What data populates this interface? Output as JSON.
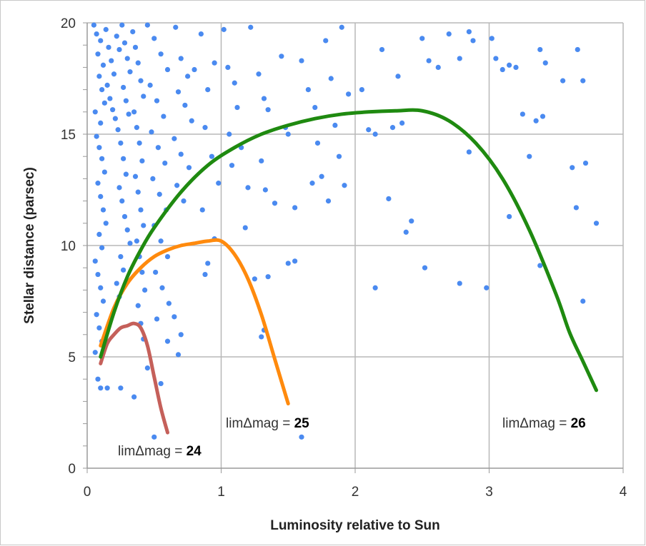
{
  "chart_data": {
    "type": "scatter",
    "title": "",
    "xlabel": "Luminosity relative to Sun",
    "ylabel": "Stellar distance (parsec)",
    "xlim": [
      0,
      4
    ],
    "ylim": [
      0,
      20
    ],
    "x_ticks": [
      "0",
      "1",
      "2",
      "3",
      "4"
    ],
    "y_ticks": [
      "0",
      "5",
      "10",
      "15",
      "20"
    ],
    "grid": true,
    "colors": {
      "points": "#4a8af0",
      "curve_24": "#c5605a",
      "curve_25": "#ff8a0d",
      "curve_26": "#1f8a10",
      "grid": "#b8b8b8"
    },
    "curves": [
      {
        "label_prefix": "limΔmag = ",
        "label_value": "24",
        "color": "#c5605a",
        "x": [
          0.1,
          0.15,
          0.2,
          0.25,
          0.3,
          0.35,
          0.4,
          0.45,
          0.5,
          0.55,
          0.6
        ],
        "y": [
          4.7,
          5.6,
          6.0,
          6.3,
          6.4,
          6.5,
          6.3,
          5.5,
          4.1,
          2.7,
          1.6
        ]
      },
      {
        "label_prefix": "limΔmag = ",
        "label_value": "25",
        "color": "#ff8a0d",
        "x": [
          0.1,
          0.2,
          0.3,
          0.4,
          0.5,
          0.6,
          0.7,
          0.8,
          0.9,
          1.0,
          1.1,
          1.2,
          1.3,
          1.4,
          1.5
        ],
        "y": [
          5.5,
          7.2,
          8.3,
          9.0,
          9.5,
          9.8,
          10.0,
          10.1,
          10.2,
          10.2,
          9.6,
          8.5,
          6.9,
          4.9,
          2.9
        ]
      },
      {
        "label_prefix": "limΔmag = ",
        "label_value": "26",
        "color": "#1f8a10",
        "x": [
          0.1,
          0.2,
          0.3,
          0.4,
          0.5,
          0.7,
          0.9,
          1.1,
          1.3,
          1.5,
          1.7,
          1.9,
          2.1,
          2.3,
          2.5,
          2.7,
          2.9,
          3.1,
          3.3,
          3.5,
          3.6,
          3.7,
          3.8
        ],
        "y": [
          5.0,
          7.0,
          8.6,
          9.8,
          10.8,
          12.4,
          13.6,
          14.4,
          15.0,
          15.4,
          15.7,
          15.9,
          16.0,
          16.05,
          16.05,
          15.6,
          14.6,
          13.0,
          10.7,
          7.8,
          6.1,
          4.8,
          3.5
        ]
      }
    ],
    "points": [
      [
        0.05,
        19.9
      ],
      [
        0.07,
        19.5
      ],
      [
        0.08,
        18.6
      ],
      [
        0.1,
        19.2
      ],
      [
        0.12,
        18.1
      ],
      [
        0.09,
        17.6
      ],
      [
        0.11,
        17.0
      ],
      [
        0.13,
        16.4
      ],
      [
        0.06,
        16.0
      ],
      [
        0.1,
        15.5
      ],
      [
        0.14,
        19.7
      ],
      [
        0.16,
        18.9
      ],
      [
        0.18,
        18.3
      ],
      [
        0.2,
        17.7
      ],
      [
        0.22,
        19.4
      ],
      [
        0.24,
        18.8
      ],
      [
        0.15,
        17.2
      ],
      [
        0.17,
        16.6
      ],
      [
        0.19,
        16.1
      ],
      [
        0.21,
        15.7
      ],
      [
        0.07,
        14.9
      ],
      [
        0.09,
        14.4
      ],
      [
        0.11,
        13.9
      ],
      [
        0.13,
        13.3
      ],
      [
        0.08,
        12.8
      ],
      [
        0.1,
        12.2
      ],
      [
        0.12,
        11.6
      ],
      [
        0.14,
        11.0
      ],
      [
        0.09,
        10.5
      ],
      [
        0.11,
        9.9
      ],
      [
        0.06,
        9.3
      ],
      [
        0.08,
        8.7
      ],
      [
        0.1,
        8.1
      ],
      [
        0.12,
        7.5
      ],
      [
        0.07,
        6.9
      ],
      [
        0.09,
        6.3
      ],
      [
        0.11,
        5.7
      ],
      [
        0.06,
        5.2
      ],
      [
        0.08,
        4.0
      ],
      [
        0.1,
        3.6
      ],
      [
        0.15,
        3.6
      ],
      [
        0.25,
        3.6
      ],
      [
        0.35,
        3.2
      ],
      [
        0.45,
        4.5
      ],
      [
        0.5,
        1.4
      ],
      [
        0.26,
        19.9
      ],
      [
        0.28,
        19.1
      ],
      [
        0.3,
        18.4
      ],
      [
        0.32,
        17.8
      ],
      [
        0.27,
        17.1
      ],
      [
        0.29,
        16.5
      ],
      [
        0.31,
        15.9
      ],
      [
        0.23,
        15.2
      ],
      [
        0.25,
        14.6
      ],
      [
        0.27,
        13.9
      ],
      [
        0.29,
        13.2
      ],
      [
        0.24,
        12.6
      ],
      [
        0.26,
        12.0
      ],
      [
        0.28,
        11.3
      ],
      [
        0.3,
        10.7
      ],
      [
        0.32,
        10.1
      ],
      [
        0.25,
        9.5
      ],
      [
        0.27,
        8.9
      ],
      [
        0.22,
        8.3
      ],
      [
        0.24,
        7.7
      ],
      [
        0.34,
        19.6
      ],
      [
        0.36,
        18.9
      ],
      [
        0.38,
        18.2
      ],
      [
        0.4,
        17.4
      ],
      [
        0.42,
        16.7
      ],
      [
        0.35,
        16.0
      ],
      [
        0.37,
        15.3
      ],
      [
        0.39,
        14.6
      ],
      [
        0.41,
        13.8
      ],
      [
        0.36,
        13.1
      ],
      [
        0.38,
        12.4
      ],
      [
        0.4,
        11.6
      ],
      [
        0.42,
        10.9
      ],
      [
        0.37,
        10.2
      ],
      [
        0.39,
        9.5
      ],
      [
        0.41,
        8.8
      ],
      [
        0.43,
        8.0
      ],
      [
        0.38,
        7.3
      ],
      [
        0.4,
        6.5
      ],
      [
        0.42,
        5.8
      ],
      [
        0.45,
        19.9
      ],
      [
        0.5,
        19.3
      ],
      [
        0.55,
        18.6
      ],
      [
        0.6,
        17.9
      ],
      [
        0.47,
        17.2
      ],
      [
        0.52,
        16.5
      ],
      [
        0.57,
        15.8
      ],
      [
        0.48,
        15.1
      ],
      [
        0.53,
        14.4
      ],
      [
        0.58,
        13.7
      ],
      [
        0.49,
        13.0
      ],
      [
        0.54,
        12.3
      ],
      [
        0.59,
        11.6
      ],
      [
        0.5,
        10.9
      ],
      [
        0.55,
        10.2
      ],
      [
        0.6,
        9.5
      ],
      [
        0.51,
        8.8
      ],
      [
        0.56,
        8.1
      ],
      [
        0.61,
        7.4
      ],
      [
        0.52,
        6.7
      ],
      [
        0.66,
        19.8
      ],
      [
        0.7,
        18.4
      ],
      [
        0.75,
        17.6
      ],
      [
        0.8,
        17.9
      ],
      [
        0.68,
        16.9
      ],
      [
        0.73,
        16.3
      ],
      [
        0.78,
        15.6
      ],
      [
        0.65,
        14.8
      ],
      [
        0.7,
        14.1
      ],
      [
        0.76,
        13.5
      ],
      [
        0.67,
        12.7
      ],
      [
        0.72,
        12.0
      ],
      [
        0.65,
        6.8
      ],
      [
        0.7,
        6.0
      ],
      [
        0.68,
        5.1
      ],
      [
        0.6,
        5.7
      ],
      [
        0.55,
        3.8
      ],
      [
        0.85,
        19.5
      ],
      [
        0.9,
        17.0
      ],
      [
        0.95,
        18.2
      ],
      [
        0.88,
        15.3
      ],
      [
        0.93,
        14.0
      ],
      [
        0.98,
        12.8
      ],
      [
        0.86,
        11.6
      ],
      [
        0.9,
        9.2
      ],
      [
        0.88,
        8.7
      ],
      [
        0.95,
        10.3
      ],
      [
        1.02,
        19.7
      ],
      [
        1.05,
        18.0
      ],
      [
        1.1,
        17.3
      ],
      [
        1.12,
        16.2
      ],
      [
        1.06,
        15.0
      ],
      [
        1.15,
        14.4
      ],
      [
        1.08,
        13.6
      ],
      [
        1.2,
        12.6
      ],
      [
        1.18,
        10.8
      ],
      [
        1.25,
        8.5
      ],
      [
        1.22,
        19.8
      ],
      [
        1.28,
        17.7
      ],
      [
        1.32,
        16.6
      ],
      [
        1.35,
        16.1
      ],
      [
        1.3,
        13.8
      ],
      [
        1.33,
        12.5
      ],
      [
        1.4,
        11.9
      ],
      [
        1.35,
        8.6
      ],
      [
        1.32,
        6.2
      ],
      [
        1.3,
        5.9
      ],
      [
        1.45,
        18.5
      ],
      [
        1.48,
        15.3
      ],
      [
        1.5,
        15.0
      ],
      [
        1.55,
        11.7
      ],
      [
        1.5,
        9.2
      ],
      [
        1.55,
        9.3
      ],
      [
        1.6,
        1.4
      ],
      [
        1.6,
        18.3
      ],
      [
        1.65,
        17.0
      ],
      [
        1.7,
        16.2
      ],
      [
        1.72,
        14.6
      ],
      [
        1.75,
        13.1
      ],
      [
        1.8,
        12.0
      ],
      [
        1.68,
        12.8
      ],
      [
        1.78,
        19.2
      ],
      [
        1.82,
        17.5
      ],
      [
        1.85,
        15.4
      ],
      [
        1.9,
        19.8
      ],
      [
        1.88,
        14.0
      ],
      [
        1.92,
        12.7
      ],
      [
        1.95,
        16.8
      ],
      [
        2.05,
        17.0
      ],
      [
        2.1,
        15.2
      ],
      [
        2.15,
        15.0
      ],
      [
        2.2,
        18.8
      ],
      [
        2.25,
        12.1
      ],
      [
        2.28,
        15.3
      ],
      [
        2.32,
        17.6
      ],
      [
        2.35,
        15.5
      ],
      [
        2.38,
        10.6
      ],
      [
        2.42,
        11.1
      ],
      [
        2.15,
        8.1
      ],
      [
        2.5,
        19.3
      ],
      [
        2.55,
        18.3
      ],
      [
        2.62,
        18.0
      ],
      [
        2.7,
        19.5
      ],
      [
        2.78,
        18.4
      ],
      [
        2.85,
        19.6
      ],
      [
        2.88,
        19.2
      ],
      [
        2.52,
        9.0
      ],
      [
        2.78,
        8.3
      ],
      [
        2.85,
        14.2
      ],
      [
        2.98,
        8.1
      ],
      [
        3.02,
        19.3
      ],
      [
        3.05,
        18.4
      ],
      [
        3.1,
        17.9
      ],
      [
        3.15,
        18.1
      ],
      [
        3.2,
        18.0
      ],
      [
        3.25,
        15.9
      ],
      [
        3.3,
        14.0
      ],
      [
        3.15,
        11.3
      ],
      [
        3.35,
        15.6
      ],
      [
        3.4,
        15.8
      ],
      [
        3.38,
        18.8
      ],
      [
        3.42,
        18.2
      ],
      [
        3.55,
        17.4
      ],
      [
        3.62,
        13.5
      ],
      [
        3.66,
        18.8
      ],
      [
        3.7,
        17.4
      ],
      [
        3.72,
        13.7
      ],
      [
        3.65,
        11.7
      ],
      [
        3.8,
        11.0
      ],
      [
        3.38,
        9.1
      ],
      [
        3.7,
        7.5
      ]
    ]
  }
}
